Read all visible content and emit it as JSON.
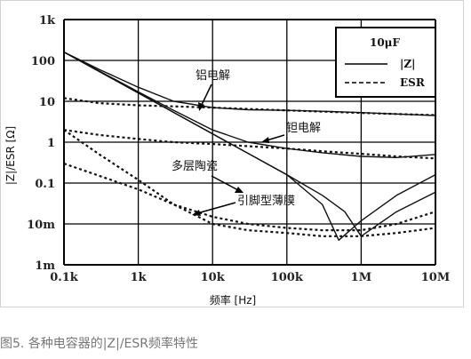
{
  "caption": "图5. 各种电容器的|Z|/ESR频率特性",
  "chart_data": {
    "type": "line",
    "title": "",
    "xlabel": "频率 [Hz]",
    "ylabel": "|Z|/ESR [Ω]",
    "xscale": "log",
    "yscale": "log",
    "xlim": [
      100,
      10000000
    ],
    "ylim": [
      0.001,
      1000
    ],
    "x_ticks": [
      "0.1k",
      "1k",
      "10k",
      "100k",
      "1M",
      "10M"
    ],
    "y_ticks": [
      "1k",
      "100",
      "10",
      "1",
      "0.1",
      "10m",
      "1m"
    ],
    "grid": true,
    "legend": {
      "position": "top-right",
      "title": "10μF",
      "entries": [
        {
          "label": "|Z|",
          "style": "solid"
        },
        {
          "label": "ESR",
          "style": "dashed"
        }
      ]
    },
    "annotations": [
      "铝电解",
      "钽电解",
      "多层陶瓷",
      "引脚型薄膜"
    ],
    "series": [
      {
        "style": "solid",
        "group": "aluminum",
        "x": [
          100,
          300,
          1000,
          3000,
          10000,
          30000,
          100000,
          300000,
          1000000,
          3000000,
          10000000
        ],
        "y": [
          160,
          60,
          22,
          10,
          7,
          6.2,
          6,
          5.7,
          5.3,
          4.9,
          4.5
        ]
      },
      {
        "style": "dashed",
        "group": "aluminum",
        "x": [
          100,
          300,
          1000,
          3000,
          10000,
          30000,
          100000,
          300000,
          1000000,
          3000000,
          10000000
        ],
        "y": [
          12,
          9,
          8,
          7.5,
          7,
          6.5,
          6,
          5.6,
          5.2,
          4.9,
          4.6
        ]
      },
      {
        "style": "solid",
        "group": "tantalum",
        "x": [
          100,
          1000,
          3000,
          10000,
          30000,
          100000,
          300000,
          1000000,
          3000000,
          10000000
        ],
        "y": [
          160,
          17,
          6,
          2,
          1,
          0.7,
          0.55,
          0.45,
          0.42,
          0.5
        ]
      },
      {
        "style": "dashed",
        "group": "tantalum",
        "x": [
          100,
          300,
          1000,
          3000,
          10000,
          30000,
          100000,
          300000,
          1000000,
          3000000,
          10000000
        ],
        "y": [
          2,
          1.5,
          1.2,
          1.0,
          0.9,
          0.8,
          0.7,
          0.6,
          0.52,
          0.45,
          0.4
        ]
      },
      {
        "style": "solid",
        "group": "ceramic",
        "x": [
          100,
          1000,
          10000,
          100000,
          300000,
          500000,
          1000000,
          3000000,
          10000000
        ],
        "y": [
          160,
          16,
          1.6,
          0.16,
          0.03,
          0.004,
          0.012,
          0.05,
          0.16
        ]
      },
      {
        "style": "dashed",
        "group": "ceramic",
        "x": [
          100,
          300,
          1000,
          3000,
          10000,
          30000,
          100000,
          300000,
          1000000,
          3000000,
          10000000
        ],
        "y": [
          2,
          0.5,
          0.12,
          0.03,
          0.01,
          0.007,
          0.006,
          0.005,
          0.005,
          0.006,
          0.008
        ]
      },
      {
        "style": "solid",
        "group": "film",
        "x": [
          100,
          1000,
          10000,
          100000,
          300000,
          600000,
          1000000,
          3000000,
          10000000
        ],
        "y": [
          160,
          16,
          1.6,
          0.16,
          0.05,
          0.02,
          0.005,
          0.02,
          0.06
        ]
      },
      {
        "style": "dashed",
        "group": "film",
        "x": [
          100,
          300,
          1000,
          3000,
          10000,
          30000,
          100000,
          300000,
          1000000,
          3000000,
          10000000
        ],
        "y": [
          0.3,
          0.15,
          0.07,
          0.03,
          0.015,
          0.01,
          0.008,
          0.007,
          0.007,
          0.01,
          0.02
        ]
      }
    ]
  }
}
